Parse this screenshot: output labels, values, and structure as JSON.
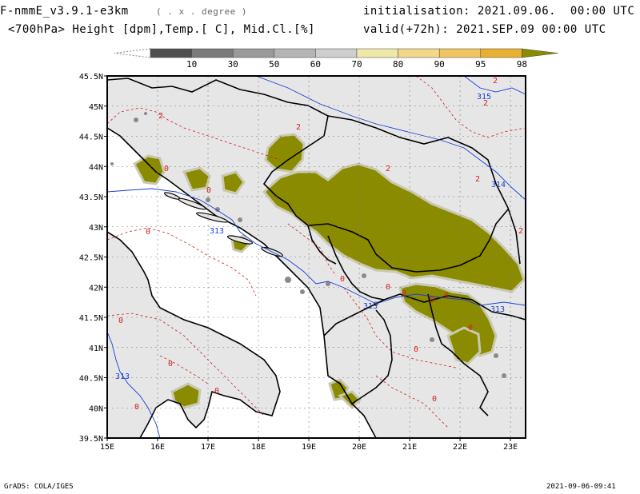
{
  "header": {
    "model": "F-nmmE_v3.9.1-e3km",
    "resolution": "( . x . degree )",
    "variables": "<700hPa> Height [dpm],Temp.[ C], Mid.Cl.[%]",
    "initialisation": "initialisation: 2021.09.06.  00:00 UTC",
    "valid": "valid(+72h): 2021.SEP.09 00:00 UTC"
  },
  "colorbar": {
    "labels": [
      "10",
      "30",
      "50",
      "60",
      "70",
      "80",
      "90",
      "95",
      "98"
    ],
    "colors": [
      "#505050",
      "#7a7a7a",
      "#9a9a9a",
      "#b4b4b4",
      "#cdcdcd",
      "#eee8a8",
      "#f2d68a",
      "#f0c460",
      "#e8b030",
      "#8b8b00"
    ]
  },
  "map": {
    "lon_labels": [
      "15E",
      "16E",
      "17E",
      "18E",
      "19E",
      "20E",
      "21E",
      "22E",
      "23E"
    ],
    "lat_labels": [
      "45.5N",
      "45N",
      "44.5N",
      "44N",
      "43.5N",
      "43N",
      "42.5N",
      "42N",
      "41.5N",
      "41N",
      "40.5N",
      "40N",
      "39.5N"
    ],
    "land_color": "#e6e6e6",
    "cloud_color": "#8b8b00",
    "height_contours": [
      {
        "label": "315"
      },
      {
        "label": "314"
      },
      {
        "label": "313"
      },
      {
        "label": "313"
      },
      {
        "label": "313"
      },
      {
        "label": "313"
      }
    ],
    "temp_labels": [
      "2",
      "2",
      "2",
      "2",
      "2",
      "0",
      "0",
      "0",
      "0",
      "0",
      "0",
      "0",
      "0",
      "0",
      "0",
      "0",
      "0",
      "0",
      "0",
      "0",
      "2",
      "2"
    ]
  },
  "footer": {
    "left": "GrADS: COLA/IGES",
    "right": "2021-09-06-09:41"
  }
}
